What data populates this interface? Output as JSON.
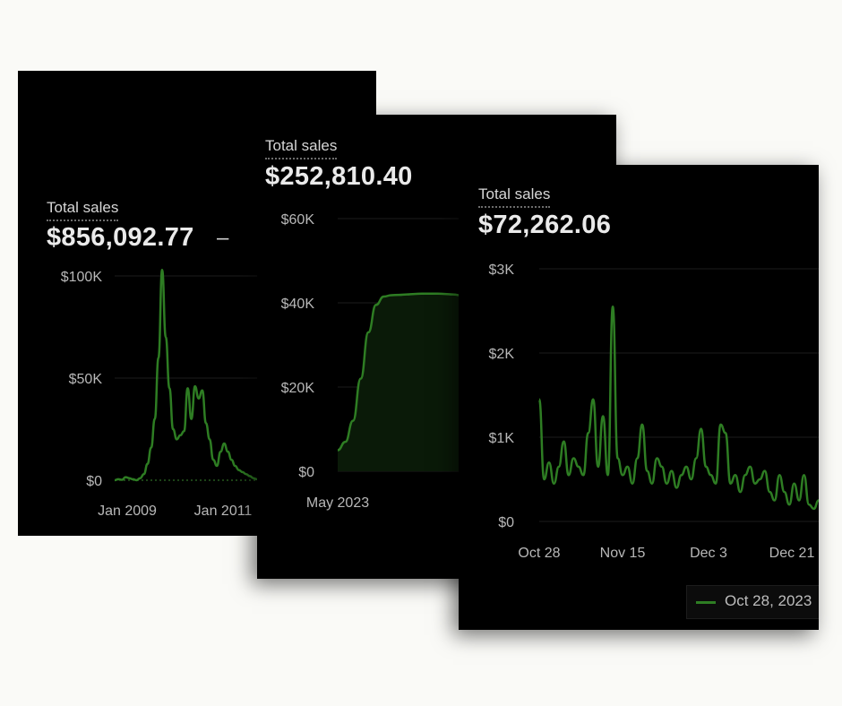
{
  "chart_data": [
    {
      "type": "line",
      "title": "Total sales",
      "total": "$856,092.77",
      "trailing_symbol": "–",
      "y_ticks": [
        "$0",
        "$50K",
        "$100K"
      ],
      "ylim": [
        0,
        100000
      ],
      "x_ticks": [
        "Jan 2009",
        "Jan 2011"
      ],
      "x": [
        "2008-01",
        "2008-02",
        "2008-03",
        "2008-04",
        "2008-05",
        "2008-06",
        "2008-07",
        "2008-08",
        "2008-09",
        "2008-10",
        "2008-11",
        "2008-12",
        "2009-01",
        "2009-02",
        "2009-03",
        "2009-04",
        "2009-05",
        "2009-06",
        "2009-07",
        "2009-08",
        "2009-09",
        "2009-10",
        "2009-11",
        "2009-12",
        "2010-01",
        "2010-02",
        "2010-03",
        "2010-04",
        "2010-05",
        "2010-06",
        "2010-07",
        "2010-08",
        "2010-09",
        "2010-10",
        "2010-11",
        "2010-12",
        "2011-01",
        "2011-02",
        "2011-03",
        "2011-04"
      ],
      "series": [
        {
          "values": [
            0,
            500,
            200,
            1500,
            1000,
            500,
            0,
            1000,
            3000,
            8000,
            16000,
            30000,
            60000,
            103000,
            70000,
            45000,
            25000,
            20000,
            22000,
            24000,
            45000,
            30000,
            46000,
            40000,
            44000,
            28000,
            20000,
            10000,
            7000,
            14000,
            18000,
            14000,
            10000,
            7000,
            5000,
            4000,
            3000,
            2000,
            1000,
            500
          ]
        }
      ],
      "baseline": "dotted",
      "grid": true
    },
    {
      "type": "line",
      "title": "Total sales",
      "total": "$252,810.40",
      "y_ticks": [
        "$0",
        "$20K",
        "$40K",
        "$60K"
      ],
      "ylim": [
        0,
        60000
      ],
      "x_ticks": [
        "May 2023"
      ],
      "x": [
        "2023-04-28",
        "2023-05-02",
        "2023-05-06",
        "2023-05-10",
        "2023-05-14",
        "2023-05-18",
        "2023-05-22",
        "2023-05-26",
        "2023-05-30",
        "2023-06-03",
        "2023-06-07",
        "2023-06-11",
        "2023-06-15",
        "2023-06-19",
        "2023-06-23",
        "2023-06-27",
        "2023-07-01"
      ],
      "series": [
        {
          "values": [
            5000,
            7000,
            12000,
            22000,
            33000,
            39500,
            41500,
            41800,
            41900,
            42000,
            42100,
            42200,
            42200,
            42200,
            42100,
            42000,
            41800
          ]
        }
      ],
      "area_fill": true,
      "grid": true
    },
    {
      "type": "line",
      "title": "Total sales",
      "total": "$72,262.06",
      "y_ticks": [
        "$0",
        "$1K",
        "$2K",
        "$3K"
      ],
      "ylim": [
        0,
        3000
      ],
      "x_ticks": [
        "Oct 28",
        "Nov 15",
        "Dec 3",
        "Dec 21"
      ],
      "x": [
        "Oct 28",
        "Oct 29",
        "Oct 30",
        "Oct 31",
        "Nov 1",
        "Nov 2",
        "Nov 3",
        "Nov 4",
        "Nov 5",
        "Nov 6",
        "Nov 7",
        "Nov 8",
        "Nov 9",
        "Nov 10",
        "Nov 11",
        "Nov 12",
        "Nov 13",
        "Nov 14",
        "Nov 15",
        "Nov 16",
        "Nov 17",
        "Nov 18",
        "Nov 19",
        "Nov 20",
        "Nov 21",
        "Nov 22",
        "Nov 23",
        "Nov 24",
        "Nov 25",
        "Nov 26",
        "Nov 27",
        "Nov 28",
        "Nov 29",
        "Nov 30",
        "Dec 1",
        "Dec 2",
        "Dec 3",
        "Dec 4",
        "Dec 5",
        "Dec 6",
        "Dec 7",
        "Dec 8",
        "Dec 9",
        "Dec 10",
        "Dec 11",
        "Dec 12",
        "Dec 13",
        "Dec 14",
        "Dec 15",
        "Dec 16",
        "Dec 17",
        "Dec 18",
        "Dec 19",
        "Dec 20",
        "Dec 21",
        "Dec 22",
        "Dec 23",
        "Dec 24"
      ],
      "series": [
        {
          "values": [
            1450,
            500,
            700,
            450,
            650,
            950,
            550,
            750,
            650,
            550,
            1050,
            1450,
            650,
            1250,
            550,
            2550,
            750,
            550,
            650,
            450,
            750,
            1150,
            600,
            450,
            750,
            650,
            450,
            600,
            400,
            550,
            650,
            500,
            750,
            1100,
            650,
            550,
            450,
            1150,
            1050,
            450,
            550,
            350,
            550,
            650,
            450,
            500,
            600,
            350,
            250,
            550,
            350,
            200,
            450,
            250,
            550,
            200,
            150,
            250
          ]
        }
      ],
      "legend": {
        "label": "Oct 28, 2023",
        "position": "bottom-right"
      },
      "grid": true
    }
  ]
}
